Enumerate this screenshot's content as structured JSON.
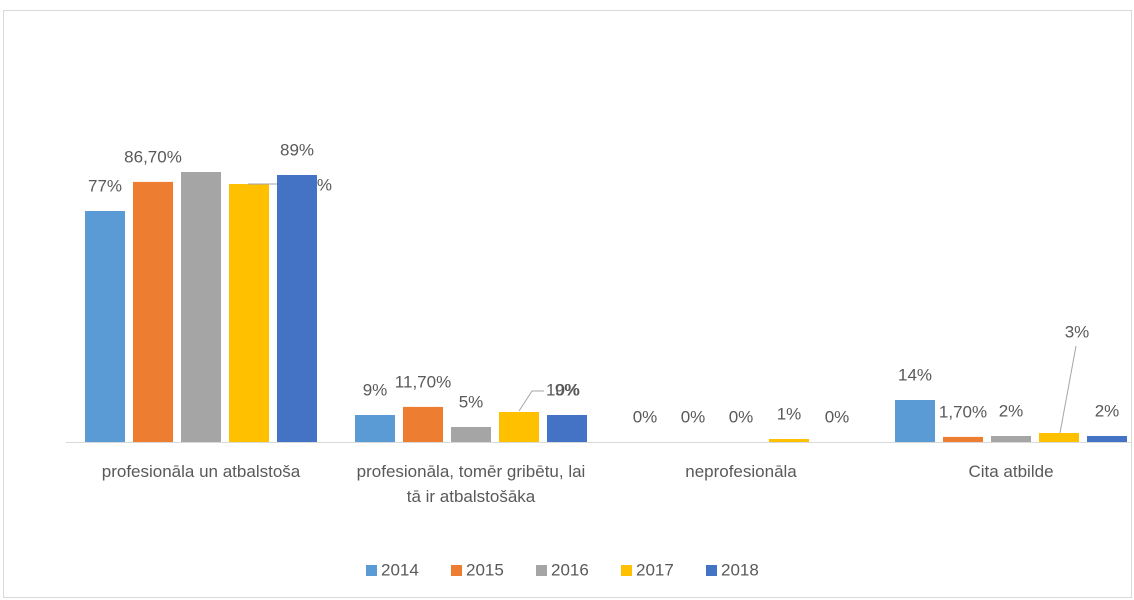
{
  "chart_data": {
    "type": "bar",
    "categories": [
      "profesionāla un atbalstoša",
      "profesionāla, tomēr gribētu, lai tā ir atbalstošāka",
      "neprofesionāla",
      "Cita atbilde"
    ],
    "series": [
      {
        "name": "2014",
        "color": "#5b9bd5",
        "values": [
          77,
          9,
          0,
          14
        ],
        "value_labels": [
          "77%",
          "9%",
          "0%",
          "14%"
        ]
      },
      {
        "name": "2015",
        "color": "#ed7d31",
        "values": [
          86.7,
          11.7,
          0,
          1.7
        ],
        "value_labels": [
          "86,70%",
          "11,70%",
          "0%",
          "1,70%"
        ]
      },
      {
        "name": "2016",
        "color": "#a5a5a5",
        "values": [
          90,
          5,
          0,
          2
        ],
        "value_labels": [
          null,
          "5%",
          "0%",
          "2%"
        ]
      },
      {
        "name": "2017",
        "color": "#ffc000",
        "values": [
          86,
          10,
          1,
          3
        ],
        "value_labels": [
          "86%",
          "10%",
          "1%",
          "3%"
        ]
      },
      {
        "name": "2018",
        "color": "#4472c4",
        "values": [
          89,
          9,
          0,
          2
        ],
        "value_labels": [
          "89%",
          "9%",
          "0%",
          "2%"
        ]
      }
    ],
    "legend": "bottom"
  }
}
